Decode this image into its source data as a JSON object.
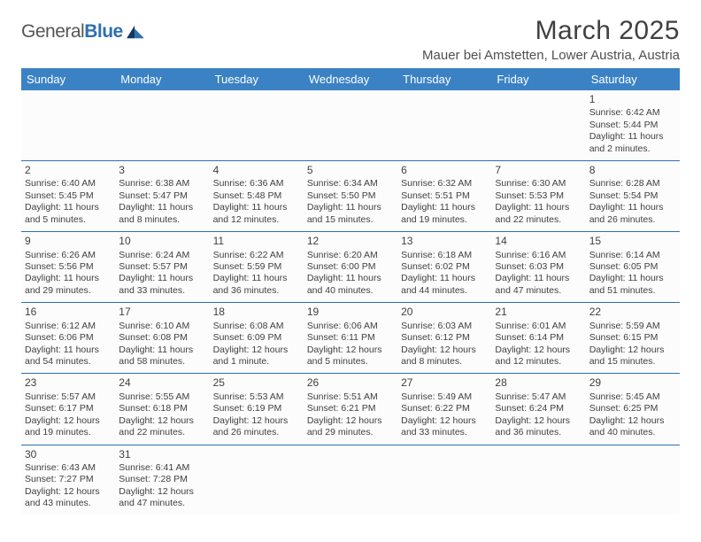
{
  "logo": {
    "text_gray": "General",
    "text_blue": "Blue"
  },
  "title": "March 2025",
  "location": "Mauer bei Amstetten, Lower Austria, Austria",
  "colors": {
    "header_bg": "#3b82c4",
    "header_text": "#ffffff",
    "border": "#2f6fb0",
    "logo_gray": "#555555",
    "logo_blue": "#2f6fb0",
    "body_text": "#404040"
  },
  "typography": {
    "title_fontsize": 30,
    "location_fontsize": 15,
    "weekday_fontsize": 13,
    "cell_fontsize": 10.5
  },
  "weekdays": [
    "Sunday",
    "Monday",
    "Tuesday",
    "Wednesday",
    "Thursday",
    "Friday",
    "Saturday"
  ],
  "weeks": [
    [
      null,
      null,
      null,
      null,
      null,
      null,
      {
        "n": "1",
        "sr": "Sunrise: 6:42 AM",
        "ss": "Sunset: 5:44 PM",
        "dl": "Daylight: 11 hours and 2 minutes."
      }
    ],
    [
      {
        "n": "2",
        "sr": "Sunrise: 6:40 AM",
        "ss": "Sunset: 5:45 PM",
        "dl": "Daylight: 11 hours and 5 minutes."
      },
      {
        "n": "3",
        "sr": "Sunrise: 6:38 AM",
        "ss": "Sunset: 5:47 PM",
        "dl": "Daylight: 11 hours and 8 minutes."
      },
      {
        "n": "4",
        "sr": "Sunrise: 6:36 AM",
        "ss": "Sunset: 5:48 PM",
        "dl": "Daylight: 11 hours and 12 minutes."
      },
      {
        "n": "5",
        "sr": "Sunrise: 6:34 AM",
        "ss": "Sunset: 5:50 PM",
        "dl": "Daylight: 11 hours and 15 minutes."
      },
      {
        "n": "6",
        "sr": "Sunrise: 6:32 AM",
        "ss": "Sunset: 5:51 PM",
        "dl": "Daylight: 11 hours and 19 minutes."
      },
      {
        "n": "7",
        "sr": "Sunrise: 6:30 AM",
        "ss": "Sunset: 5:53 PM",
        "dl": "Daylight: 11 hours and 22 minutes."
      },
      {
        "n": "8",
        "sr": "Sunrise: 6:28 AM",
        "ss": "Sunset: 5:54 PM",
        "dl": "Daylight: 11 hours and 26 minutes."
      }
    ],
    [
      {
        "n": "9",
        "sr": "Sunrise: 6:26 AM",
        "ss": "Sunset: 5:56 PM",
        "dl": "Daylight: 11 hours and 29 minutes."
      },
      {
        "n": "10",
        "sr": "Sunrise: 6:24 AM",
        "ss": "Sunset: 5:57 PM",
        "dl": "Daylight: 11 hours and 33 minutes."
      },
      {
        "n": "11",
        "sr": "Sunrise: 6:22 AM",
        "ss": "Sunset: 5:59 PM",
        "dl": "Daylight: 11 hours and 36 minutes."
      },
      {
        "n": "12",
        "sr": "Sunrise: 6:20 AM",
        "ss": "Sunset: 6:00 PM",
        "dl": "Daylight: 11 hours and 40 minutes."
      },
      {
        "n": "13",
        "sr": "Sunrise: 6:18 AM",
        "ss": "Sunset: 6:02 PM",
        "dl": "Daylight: 11 hours and 44 minutes."
      },
      {
        "n": "14",
        "sr": "Sunrise: 6:16 AM",
        "ss": "Sunset: 6:03 PM",
        "dl": "Daylight: 11 hours and 47 minutes."
      },
      {
        "n": "15",
        "sr": "Sunrise: 6:14 AM",
        "ss": "Sunset: 6:05 PM",
        "dl": "Daylight: 11 hours and 51 minutes."
      }
    ],
    [
      {
        "n": "16",
        "sr": "Sunrise: 6:12 AM",
        "ss": "Sunset: 6:06 PM",
        "dl": "Daylight: 11 hours and 54 minutes."
      },
      {
        "n": "17",
        "sr": "Sunrise: 6:10 AM",
        "ss": "Sunset: 6:08 PM",
        "dl": "Daylight: 11 hours and 58 minutes."
      },
      {
        "n": "18",
        "sr": "Sunrise: 6:08 AM",
        "ss": "Sunset: 6:09 PM",
        "dl": "Daylight: 12 hours and 1 minute."
      },
      {
        "n": "19",
        "sr": "Sunrise: 6:06 AM",
        "ss": "Sunset: 6:11 PM",
        "dl": "Daylight: 12 hours and 5 minutes."
      },
      {
        "n": "20",
        "sr": "Sunrise: 6:03 AM",
        "ss": "Sunset: 6:12 PM",
        "dl": "Daylight: 12 hours and 8 minutes."
      },
      {
        "n": "21",
        "sr": "Sunrise: 6:01 AM",
        "ss": "Sunset: 6:14 PM",
        "dl": "Daylight: 12 hours and 12 minutes."
      },
      {
        "n": "22",
        "sr": "Sunrise: 5:59 AM",
        "ss": "Sunset: 6:15 PM",
        "dl": "Daylight: 12 hours and 15 minutes."
      }
    ],
    [
      {
        "n": "23",
        "sr": "Sunrise: 5:57 AM",
        "ss": "Sunset: 6:17 PM",
        "dl": "Daylight: 12 hours and 19 minutes."
      },
      {
        "n": "24",
        "sr": "Sunrise: 5:55 AM",
        "ss": "Sunset: 6:18 PM",
        "dl": "Daylight: 12 hours and 22 minutes."
      },
      {
        "n": "25",
        "sr": "Sunrise: 5:53 AM",
        "ss": "Sunset: 6:19 PM",
        "dl": "Daylight: 12 hours and 26 minutes."
      },
      {
        "n": "26",
        "sr": "Sunrise: 5:51 AM",
        "ss": "Sunset: 6:21 PM",
        "dl": "Daylight: 12 hours and 29 minutes."
      },
      {
        "n": "27",
        "sr": "Sunrise: 5:49 AM",
        "ss": "Sunset: 6:22 PM",
        "dl": "Daylight: 12 hours and 33 minutes."
      },
      {
        "n": "28",
        "sr": "Sunrise: 5:47 AM",
        "ss": "Sunset: 6:24 PM",
        "dl": "Daylight: 12 hours and 36 minutes."
      },
      {
        "n": "29",
        "sr": "Sunrise: 5:45 AM",
        "ss": "Sunset: 6:25 PM",
        "dl": "Daylight: 12 hours and 40 minutes."
      }
    ],
    [
      {
        "n": "30",
        "sr": "Sunrise: 6:43 AM",
        "ss": "Sunset: 7:27 PM",
        "dl": "Daylight: 12 hours and 43 minutes."
      },
      {
        "n": "31",
        "sr": "Sunrise: 6:41 AM",
        "ss": "Sunset: 7:28 PM",
        "dl": "Daylight: 12 hours and 47 minutes."
      },
      null,
      null,
      null,
      null,
      null
    ]
  ]
}
